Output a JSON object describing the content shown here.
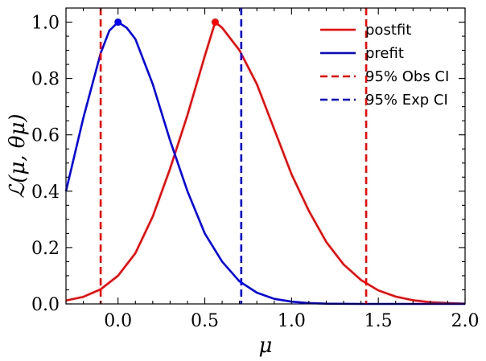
{
  "chart_data": {
    "type": "line",
    "xlabel": "μ",
    "ylabel": "ℒ(μ, θμ)",
    "xlim": [
      -0.3,
      2.0
    ],
    "ylim": [
      0.0,
      1.05
    ],
    "xticks": [
      0.0,
      0.5,
      1.0,
      1.5,
      2.0
    ],
    "xtick_labels": [
      "0.0",
      "0.5",
      "1.0",
      "1.5",
      "2.0"
    ],
    "yticks": [
      0.0,
      0.2,
      0.4,
      0.6,
      0.8,
      1.0
    ],
    "ytick_labels": [
      "0.0",
      "0.2",
      "0.4",
      "0.6",
      "0.8",
      "1.0"
    ],
    "grid": false,
    "legend_position": "top-right",
    "series": [
      {
        "name": "postfit",
        "color": "#ff0000",
        "style": "solid",
        "x": [
          -0.3,
          -0.2,
          -0.1,
          0.0,
          0.1,
          0.2,
          0.3,
          0.4,
          0.5,
          0.56,
          0.6,
          0.7,
          0.8,
          0.9,
          1.0,
          1.1,
          1.2,
          1.3,
          1.4,
          1.5,
          1.6,
          1.7,
          1.8,
          1.9,
          2.0
        ],
        "y": [
          0.012,
          0.025,
          0.052,
          0.1,
          0.18,
          0.31,
          0.48,
          0.67,
          0.88,
          1.0,
          0.98,
          0.9,
          0.78,
          0.62,
          0.46,
          0.33,
          0.22,
          0.14,
          0.085,
          0.048,
          0.026,
          0.013,
          0.006,
          0.003,
          0.001
        ]
      },
      {
        "name": "prefit",
        "color": "#0000ff",
        "style": "solid",
        "x": [
          -0.3,
          -0.2,
          -0.1,
          -0.05,
          0.0,
          0.05,
          0.1,
          0.2,
          0.3,
          0.4,
          0.5,
          0.6,
          0.7,
          0.8,
          0.9,
          1.0,
          1.1,
          1.2,
          1.4,
          1.6,
          1.8,
          2.0
        ],
        "y": [
          0.4,
          0.66,
          0.89,
          0.97,
          1.0,
          0.98,
          0.94,
          0.78,
          0.58,
          0.4,
          0.25,
          0.15,
          0.08,
          0.04,
          0.018,
          0.008,
          0.003,
          0.001,
          0.0,
          0.0,
          0.0,
          0.0
        ]
      }
    ],
    "markers": [
      {
        "series": "postfit",
        "x": 0.56,
        "y": 1.0,
        "color": "#ff0000"
      },
      {
        "series": "prefit",
        "x": 0.0,
        "y": 1.0,
        "color": "#0000ff"
      }
    ],
    "vlines": [
      {
        "name": "95% Obs CI",
        "x": -0.1,
        "color": "#ff0000",
        "style": "dashed"
      },
      {
        "name": "95% Obs CI",
        "x": 1.43,
        "color": "#ff0000",
        "style": "dashed"
      },
      {
        "name": "95% Exp CI",
        "x": 0.71,
        "color": "#0000ff",
        "style": "dashed"
      }
    ],
    "legend": [
      {
        "label": "postfit",
        "color": "#ff0000",
        "style": "solid"
      },
      {
        "label": "prefit",
        "color": "#0000ff",
        "style": "solid"
      },
      {
        "label": "95% Obs CI",
        "color": "#ff0000",
        "style": "dashed"
      },
      {
        "label": "95% Exp CI",
        "color": "#0000ff",
        "style": "dashed"
      }
    ]
  }
}
